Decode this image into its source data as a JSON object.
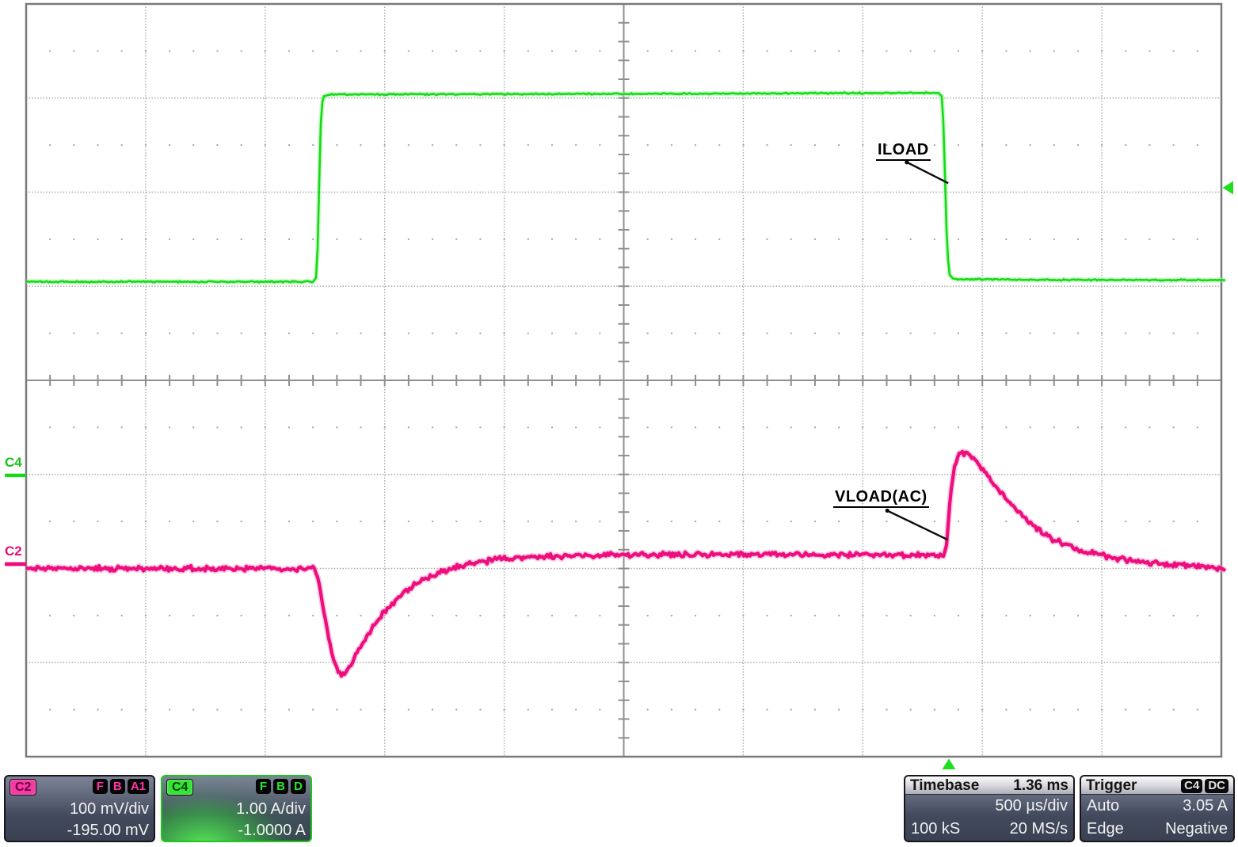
{
  "scope": {
    "side_labels": {
      "c4": "C4",
      "c2": "C2"
    },
    "c2_box": {
      "channel": "C2",
      "badges": [
        "F",
        "B",
        "A1"
      ],
      "scale": "100 mV/div",
      "offset": "-195.00 mV"
    },
    "c4_box": {
      "channel": "C4",
      "badges": [
        "F",
        "B",
        "D"
      ],
      "scale": "1.00 A/div",
      "offset": "-1.0000 A"
    },
    "timebase_box": {
      "title": "Timebase",
      "value": "1.36 ms",
      "per_div": "500 µs/div",
      "samples": "100 kS",
      "rate": "20 MS/s"
    },
    "trigger_box": {
      "title": "Trigger",
      "source": "C4",
      "coupling": "DC",
      "mode": "Auto",
      "level": "3.05 A",
      "type": "Edge",
      "slope": "Negative"
    }
  },
  "chart_data": {
    "type": "line",
    "x_axis": {
      "divisions": 10,
      "scale": "500 µs/div"
    },
    "y_axis": {
      "divisions": 8,
      "scales": {
        "C4": "1.00 A/div",
        "C2": "100 mV/div"
      }
    },
    "grid": {
      "x_divisions": 10,
      "y_divisions": 8,
      "minor_per_div": 5,
      "dot_color": "#a6a6a6",
      "axis_color": "#8f8f8f",
      "border_color": "#7a7a7a"
    },
    "series": [
      {
        "name": "ILOAD",
        "channel": "C4",
        "color": "#12dd12",
        "halo": "#9df09d",
        "width": 2.6,
        "noise": 1.1,
        "points_div": [
          [
            0,
            2.952
          ],
          [
            2.4,
            2.952
          ],
          [
            2.432,
            2.9
          ],
          [
            2.444,
            2.35
          ],
          [
            2.452,
            1.9
          ],
          [
            2.46,
            1.45
          ],
          [
            2.47,
            1.1
          ],
          [
            2.487,
            0.985
          ],
          [
            2.55,
            0.962
          ],
          [
            4.0,
            0.958
          ],
          [
            6.0,
            0.952
          ],
          [
            7.63,
            0.945
          ],
          [
            7.665,
            0.99
          ],
          [
            7.68,
            1.45
          ],
          [
            7.692,
            2.05
          ],
          [
            7.705,
            2.58
          ],
          [
            7.722,
            2.87
          ],
          [
            7.76,
            2.925
          ],
          [
            8.5,
            2.932
          ],
          [
            10.04,
            2.935
          ]
        ]
      },
      {
        "name": "VLOAD(AC)",
        "channel": "C2",
        "color": "#ee0d7d",
        "halo": "#f79ac8",
        "width": 4.2,
        "noise": 3.8,
        "points_div": [
          [
            0,
            6.0
          ],
          [
            2.418,
            6.0
          ],
          [
            2.45,
            6.16
          ],
          [
            2.5,
            6.52
          ],
          [
            2.555,
            6.88
          ],
          [
            2.6,
            7.08
          ],
          [
            2.632,
            7.14
          ],
          [
            2.665,
            7.11
          ],
          [
            2.725,
            6.99
          ],
          [
            2.805,
            6.81
          ],
          [
            2.9,
            6.62
          ],
          [
            3.0,
            6.45
          ],
          [
            3.15,
            6.26
          ],
          [
            3.3,
            6.13
          ],
          [
            3.5,
            6.02
          ],
          [
            3.7,
            5.952
          ],
          [
            3.95,
            5.9
          ],
          [
            4.3,
            5.872
          ],
          [
            4.8,
            5.858
          ],
          [
            5.5,
            5.853
          ],
          [
            6.5,
            5.853
          ],
          [
            7.2,
            5.856
          ],
          [
            7.68,
            5.858
          ],
          [
            7.705,
            5.7
          ],
          [
            7.735,
            5.2
          ],
          [
            7.765,
            4.92
          ],
          [
            7.805,
            4.79
          ],
          [
            7.87,
            4.773
          ],
          [
            7.95,
            4.86
          ],
          [
            8.05,
            5.03
          ],
          [
            8.2,
            5.27
          ],
          [
            8.4,
            5.52
          ],
          [
            8.6,
            5.7
          ],
          [
            8.85,
            5.82
          ],
          [
            9.1,
            5.89
          ],
          [
            9.4,
            5.94
          ],
          [
            9.7,
            5.972
          ],
          [
            10.04,
            6.002
          ]
        ]
      }
    ],
    "annotations": [
      {
        "text": "ILOAD",
        "leader": [
          [
            7.368,
            1.682
          ],
          [
            7.715,
            1.905
          ]
        ]
      },
      {
        "text": "VLOAD(AC)",
        "leader": [
          [
            7.205,
            5.385
          ],
          [
            7.712,
            5.695
          ]
        ]
      }
    ],
    "markers": {
      "color": "#1fdf1f",
      "trigger_level_y_div": 1.954,
      "trigger_time_x_div": 7.72,
      "c4_zero_y_div": 5.01,
      "c2_zero_y_div": 5.953
    }
  }
}
